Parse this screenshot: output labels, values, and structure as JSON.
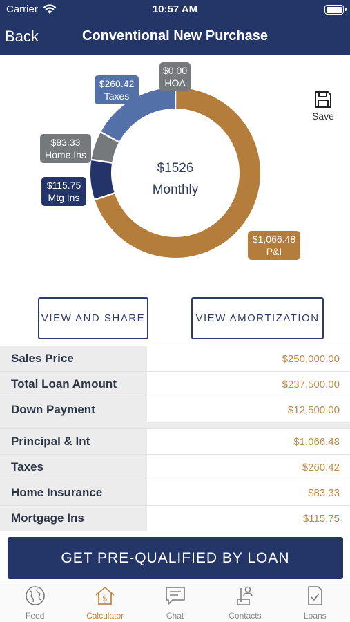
{
  "status_bar": {
    "carrier": "Carrier",
    "time": "10:57 AM"
  },
  "nav": {
    "back_label": "Back",
    "title": "Conventional New Purchase"
  },
  "chart": {
    "total": "$1526",
    "total_label": "Monthly",
    "segments": [
      {
        "name": "P&I",
        "amount": "$1,066.48",
        "value": 1066.48,
        "color": "#b57d3c"
      },
      {
        "name": "Mtg Ins",
        "amount": "$115.75",
        "value": 115.75,
        "color": "#23346b"
      },
      {
        "name": "Home Ins",
        "amount": "$83.33",
        "value": 83.33,
        "color": "#76797c"
      },
      {
        "name": "Taxes",
        "amount": "$260.42",
        "value": 260.42,
        "color": "#5470a8"
      },
      {
        "name": "HOA",
        "amount": "$0.00",
        "value": 0,
        "color": "#76797c"
      }
    ]
  },
  "save_label": "Save",
  "buttons": {
    "view_share": "VIEW AND SHARE",
    "view_amortization": "VIEW AMORTIZATION"
  },
  "loan_table": [
    {
      "label": "Sales Price",
      "value": "$250,000.00"
    },
    {
      "label": "Total Loan Amount",
      "value": "$237,500.00"
    },
    {
      "label": "Down Payment",
      "value": "$12,500.00"
    }
  ],
  "payment_table": [
    {
      "label": "Principal & Int",
      "value": "$1,066.48"
    },
    {
      "label": "Taxes",
      "value": "$260.42"
    },
    {
      "label": "Home Insurance",
      "value": "$83.33"
    },
    {
      "label": "Mortgage Ins",
      "value": "$115.75"
    }
  ],
  "cta_label": "GET PRE-QUALIFIED BY LOAN",
  "tabs": [
    {
      "label": "Feed",
      "icon": "globe-icon"
    },
    {
      "label": "Calculator",
      "icon": "house-dollar-icon",
      "active": true
    },
    {
      "label": "Chat",
      "icon": "chat-icon"
    },
    {
      "label": "Contacts",
      "icon": "contacts-icon"
    },
    {
      "label": "Loans",
      "icon": "document-check-icon"
    }
  ]
}
